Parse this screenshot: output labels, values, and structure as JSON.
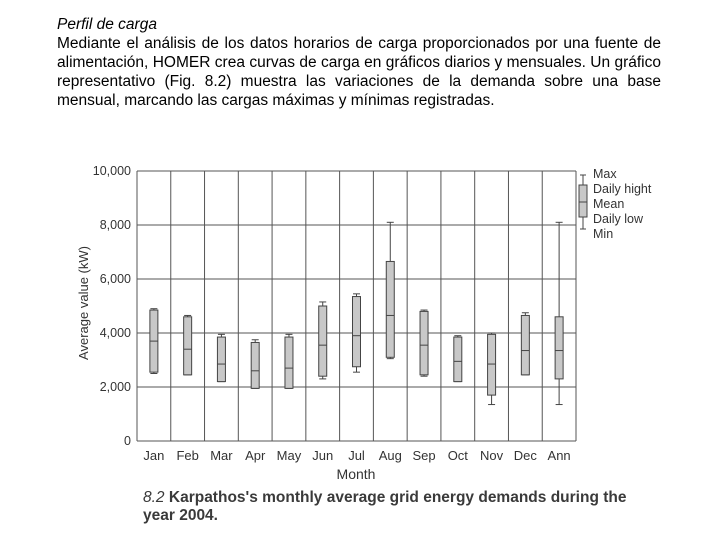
{
  "text": {
    "heading": "Perfil de carga",
    "paragraph": "Mediante el análisis de los datos horarios de carga proporcionados por una fuente de alimentación, HOMER crea curvas de carga en gráficos diarios y mensuales. Un gráfico representativo (Fig. 8.2) muestra las variaciones de la demanda sobre una base mensual, marcando las cargas máximas y mínimas registradas."
  },
  "caption": {
    "figure_number": "8.2",
    "text": "Karpathos's monthly average grid energy demands during the year 2004."
  },
  "colors": {
    "box_fill": "#c8c8c8",
    "line": "#444444",
    "grid": "#555555",
    "text": "#333333"
  },
  "chart_data": {
    "type": "boxplot",
    "categories": [
      "Jan",
      "Feb",
      "Mar",
      "Apr",
      "May",
      "Jun",
      "Jul",
      "Aug",
      "Sep",
      "Oct",
      "Nov",
      "Dec",
      "Ann"
    ],
    "ytick_labels": [
      "0",
      "2,000",
      "4,000",
      "6,000",
      "8,000",
      "10,000"
    ],
    "yticks": [
      0,
      2000,
      4000,
      6000,
      8000,
      10000
    ],
    "ylim": [
      0,
      10000
    ],
    "xlabel": "Month",
    "ylabel": "Average value (kW)",
    "grid": true,
    "legend_position": "right",
    "legend": [
      "Max",
      "Daily hight",
      "Mean",
      "Daily low",
      "Min"
    ],
    "series": [
      {
        "max": 4900,
        "daily_high": 4850,
        "mean": 3700,
        "daily_low": 2550,
        "min": 2500
      },
      {
        "max": 4650,
        "daily_high": 4600,
        "mean": 3400,
        "daily_low": 2450,
        "min": 2450
      },
      {
        "max": 3950,
        "daily_high": 3850,
        "mean": 2850,
        "daily_low": 2200,
        "min": 2200
      },
      {
        "max": 3750,
        "daily_high": 3650,
        "mean": 2600,
        "daily_low": 1950,
        "min": 1950
      },
      {
        "max": 3950,
        "daily_high": 3850,
        "mean": 2700,
        "daily_low": 1950,
        "min": 1950
      },
      {
        "max": 5150,
        "daily_high": 5000,
        "mean": 3550,
        "daily_low": 2400,
        "min": 2300
      },
      {
        "max": 5450,
        "daily_high": 5350,
        "mean": 3900,
        "daily_low": 2750,
        "min": 2550
      },
      {
        "max": 8100,
        "daily_high": 6650,
        "mean": 4650,
        "daily_low": 3100,
        "min": 3050
      },
      {
        "max": 4850,
        "daily_high": 4800,
        "mean": 3550,
        "daily_low": 2450,
        "min": 2400
      },
      {
        "max": 3900,
        "daily_high": 3850,
        "mean": 2950,
        "daily_low": 2200,
        "min": 2200
      },
      {
        "max": 4000,
        "daily_high": 3950,
        "mean": 2850,
        "daily_low": 1700,
        "min": 1350
      },
      {
        "max": 4750,
        "daily_high": 4650,
        "mean": 3350,
        "daily_low": 2450,
        "min": 2450
      },
      {
        "max": 8100,
        "daily_high": 4600,
        "mean": 3350,
        "daily_low": 2300,
        "min": 1350
      }
    ]
  }
}
